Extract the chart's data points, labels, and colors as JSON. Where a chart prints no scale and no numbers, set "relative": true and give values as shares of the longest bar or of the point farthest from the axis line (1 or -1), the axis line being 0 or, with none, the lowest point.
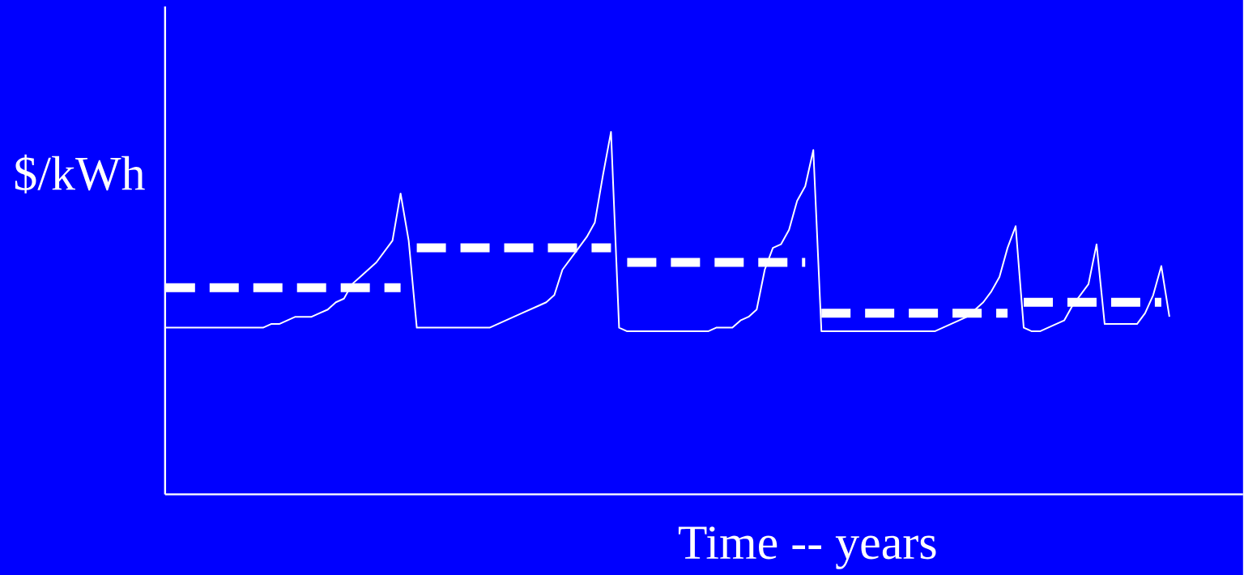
{
  "chart_data": {
    "type": "line",
    "xlabel": "Time -- years",
    "ylabel": "$/kWh",
    "relative": true,
    "categories": [
      null,
      null,
      null,
      null,
      null,
      null,
      null,
      null,
      null,
      null,
      null,
      null,
      null,
      null,
      null,
      null,
      null,
      null,
      null,
      null,
      null,
      null,
      null,
      null,
      null,
      null,
      null,
      null,
      null,
      null,
      null,
      null,
      null,
      null,
      null,
      null,
      null,
      null,
      null,
      null,
      null,
      null,
      null,
      null,
      null,
      null,
      null,
      null,
      null,
      null,
      null,
      null,
      null,
      null,
      null,
      null,
      null,
      null,
      null,
      null,
      null,
      null,
      null,
      null,
      null,
      null,
      null,
      null,
      null,
      null,
      null,
      null,
      null,
      null,
      null,
      null,
      null,
      null,
      null,
      null,
      null,
      null,
      null,
      null,
      null,
      null,
      null,
      null,
      null,
      null,
      null,
      null,
      null,
      null,
      null,
      null,
      null,
      null,
      null,
      null,
      null,
      null,
      null,
      null,
      null,
      null,
      null,
      null,
      null,
      null,
      null,
      null,
      null,
      null,
      null,
      null,
      null,
      null,
      null,
      null,
      null,
      null,
      null,
      null,
      null
    ],
    "series": [
      {
        "color": "#ffffff",
        "line_style": "solid",
        "values": [
          0.46,
          0.46,
          0.46,
          0.46,
          0.46,
          0.46,
          0.46,
          0.46,
          0.46,
          0.46,
          0.46,
          0.46,
          0.46,
          0.47,
          0.47,
          0.48,
          0.49,
          0.49,
          0.49,
          0.5,
          0.51,
          0.53,
          0.54,
          0.58,
          0.6,
          0.62,
          0.64,
          0.67,
          0.7,
          0.83,
          0.7,
          0.46,
          0.46,
          0.46,
          0.46,
          0.46,
          0.46,
          0.46,
          0.46,
          0.46,
          0.46,
          0.47,
          0.48,
          0.49,
          0.5,
          0.51,
          0.52,
          0.53,
          0.55,
          0.62,
          0.65,
          0.68,
          0.71,
          0.75,
          0.88,
          1,
          0.46,
          0.45,
          0.45,
          0.45,
          0.45,
          0.45,
          0.45,
          0.45,
          0.45,
          0.45,
          0.45,
          0.45,
          0.46,
          0.46,
          0.46,
          0.48,
          0.49,
          0.51,
          0.62,
          0.68,
          0.69,
          0.73,
          0.81,
          0.85,
          0.95,
          0.45,
          0.45,
          0.45,
          0.45,
          0.45,
          0.45,
          0.45,
          0.45,
          0.45,
          0.45,
          0.45,
          0.45,
          0.45,
          0.45,
          0.45,
          0.46,
          0.47,
          0.48,
          0.49,
          0.51,
          0.53,
          0.56,
          0.6,
          0.68,
          0.74,
          0.46,
          0.45,
          0.45,
          0.46,
          0.47,
          0.48,
          0.52,
          0.55,
          0.58,
          0.69,
          0.47,
          0.47,
          0.47,
          0.47,
          0.47,
          0.5,
          0.55,
          0.63,
          0.49
        ]
      },
      {
        "color": "#ffffff",
        "line_style": "dashed",
        "values": [
          0.57,
          0.57,
          0.57,
          0.57,
          0.57,
          0.57,
          0.57,
          0.57,
          0.57,
          0.57,
          0.57,
          0.57,
          0.57,
          0.57,
          0.57,
          0.57,
          0.57,
          0.57,
          0.57,
          0.57,
          0.57,
          0.57,
          0.57,
          0.57,
          0.57,
          0.57,
          0.57,
          0.57,
          0.57,
          0.57,
          null,
          0.68,
          0.68,
          0.68,
          0.68,
          0.68,
          0.68,
          0.68,
          0.68,
          0.68,
          0.68,
          0.68,
          0.68,
          0.68,
          0.68,
          0.68,
          0.68,
          0.68,
          0.68,
          0.68,
          0.68,
          0.68,
          0.68,
          0.68,
          0.68,
          0.68,
          null,
          0.64,
          0.64,
          0.64,
          0.64,
          0.64,
          0.64,
          0.64,
          0.64,
          0.64,
          0.64,
          0.64,
          0.64,
          0.64,
          0.64,
          0.64,
          0.64,
          0.64,
          0.64,
          0.64,
          0.64,
          0.64,
          0.64,
          0.64,
          null,
          0.5,
          0.5,
          0.5,
          0.5,
          0.5,
          0.5,
          0.5,
          0.5,
          0.5,
          0.5,
          0.5,
          0.5,
          0.5,
          0.5,
          0.5,
          0.5,
          0.5,
          0.5,
          0.5,
          0.5,
          0.5,
          0.5,
          0.5,
          0.5,
          null,
          0.53,
          0.53,
          0.53,
          0.53,
          0.53,
          0.53,
          0.53,
          0.53,
          0.53,
          0.53,
          0.53,
          0.53,
          0.53,
          0.53,
          0.53,
          0.53,
          0.53,
          0.53,
          null
        ]
      }
    ]
  }
}
